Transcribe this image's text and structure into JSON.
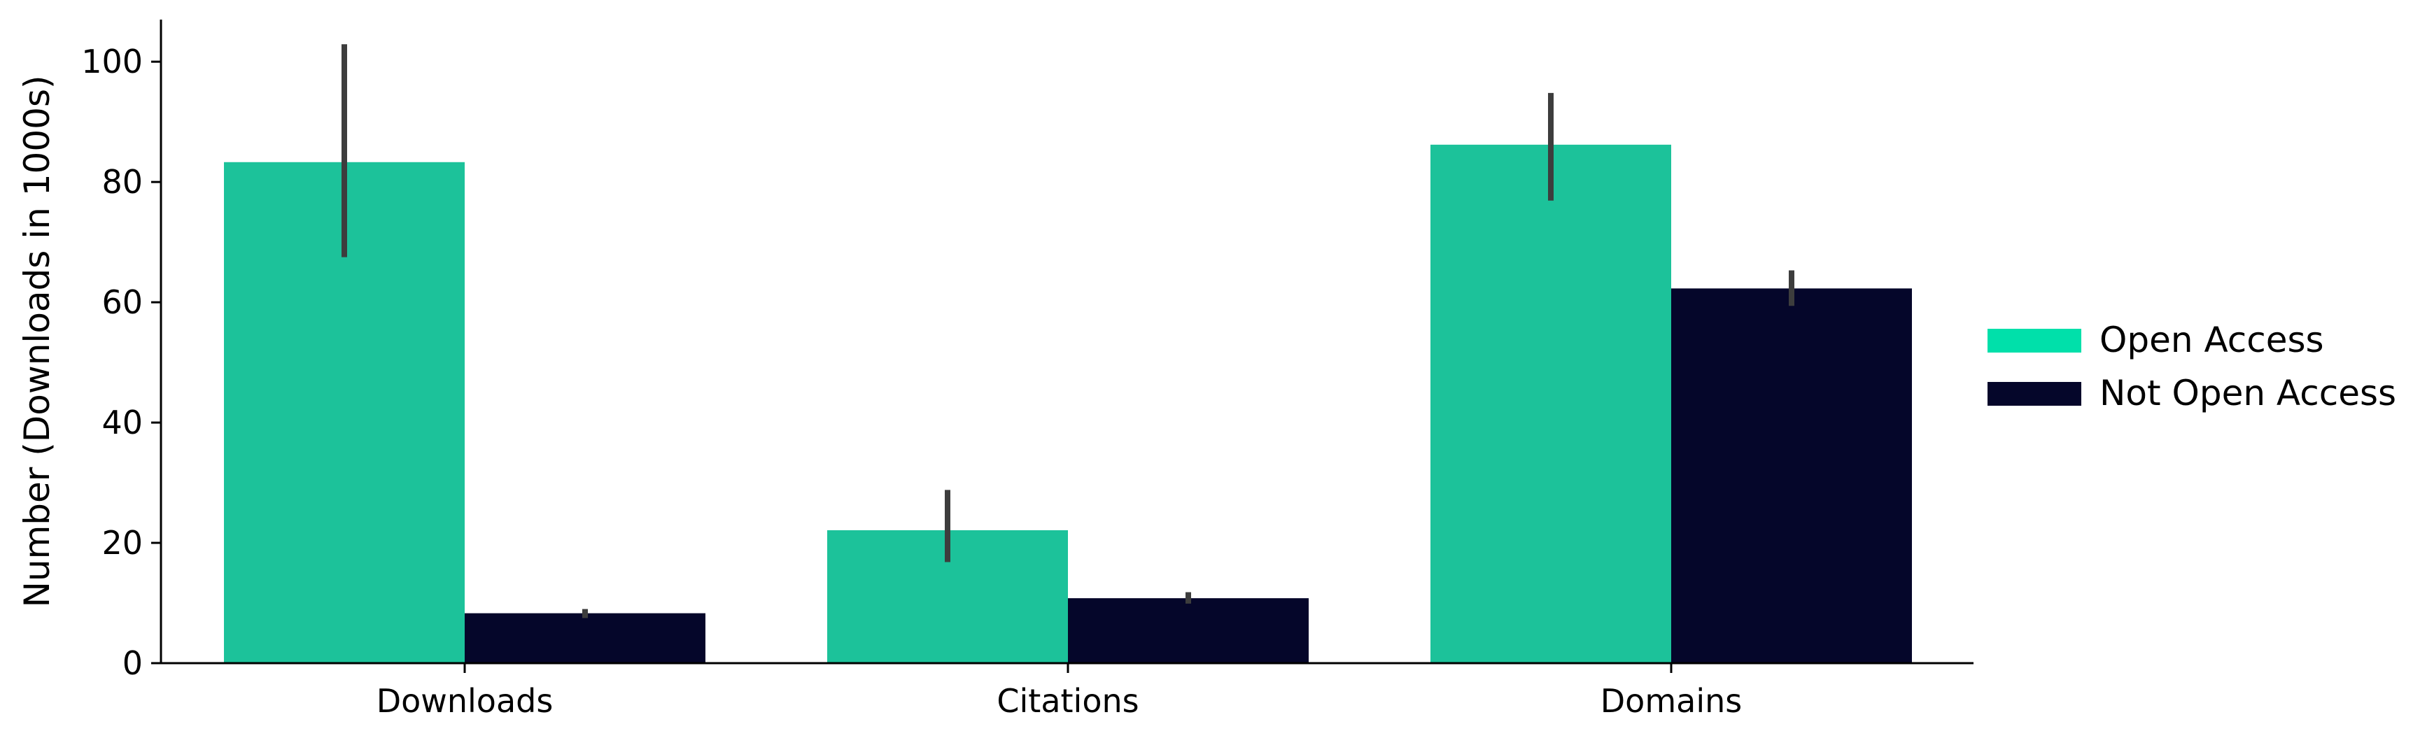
{
  "chart_data": {
    "type": "bar",
    "title": "",
    "xlabel": "",
    "ylabel": "Number (Downloads in 1000s)",
    "categories": [
      "Downloads",
      "Citations",
      "Domains"
    ],
    "ylim": [
      0,
      107
    ],
    "yticks": [
      0,
      20,
      40,
      60,
      80,
      100
    ],
    "grid": false,
    "legend_position": "right",
    "series": [
      {
        "name": "Open Access",
        "color": "#1cc29a",
        "legend_color": "#00e0aa",
        "values": [
          83.3,
          22.1,
          86.2
        ],
        "error_low": [
          67.5,
          16.8,
          76.9
        ],
        "error_high": [
          102.9,
          28.8,
          94.8
        ]
      },
      {
        "name": "Not Open Access",
        "color": "#05062a",
        "legend_color": "#05062a",
        "values": [
          8.3,
          10.8,
          62.3
        ],
        "error_low": [
          7.5,
          9.9,
          59.4
        ],
        "error_high": [
          9.0,
          11.8,
          65.3
        ]
      }
    ],
    "error_bar_color": "#3d3d3d"
  }
}
